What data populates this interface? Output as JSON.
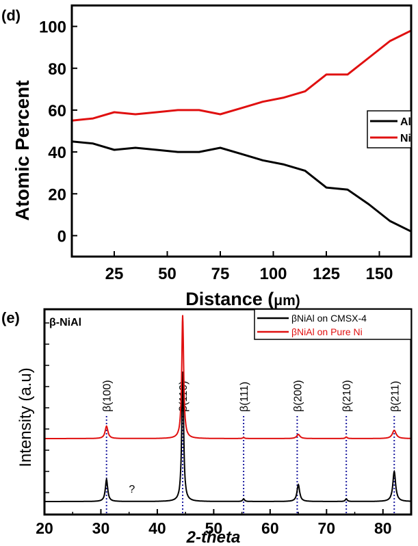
{
  "chart_data": [
    {
      "type": "line",
      "panel_label": "(d)",
      "xlabel_main": "Distance (",
      "xlabel_unit": "μm",
      "xlabel_close": ")",
      "ylabel": "Atomic Percent",
      "xlim": [
        5,
        165
      ],
      "ylim": [
        -10,
        110
      ],
      "xticks": [
        25,
        50,
        75,
        100,
        125,
        150
      ],
      "yticks": [
        0,
        20,
        40,
        60,
        80,
        100
      ],
      "legend_position": "right",
      "series": [
        {
          "name": "Al",
          "color": "#000000",
          "points": [
            [
              5,
              45
            ],
            [
              15,
              44
            ],
            [
              25,
              41
            ],
            [
              35,
              42
            ],
            [
              45,
              41
            ],
            [
              55,
              40
            ],
            [
              65,
              40
            ],
            [
              75,
              42
            ],
            [
              85,
              39
            ],
            [
              95,
              36
            ],
            [
              105,
              34
            ],
            [
              115,
              31
            ],
            [
              125,
              23
            ],
            [
              135,
              22
            ],
            [
              145,
              15
            ],
            [
              155,
              7
            ],
            [
              165,
              2
            ]
          ]
        },
        {
          "name": "Ni",
          "color": "#e01010",
          "points": [
            [
              5,
              55
            ],
            [
              15,
              56
            ],
            [
              25,
              59
            ],
            [
              35,
              58
            ],
            [
              45,
              59
            ],
            [
              55,
              60
            ],
            [
              65,
              60
            ],
            [
              75,
              58
            ],
            [
              85,
              61
            ],
            [
              95,
              64
            ],
            [
              105,
              66
            ],
            [
              115,
              69
            ],
            [
              125,
              77
            ],
            [
              135,
              77
            ],
            [
              145,
              85
            ],
            [
              155,
              93
            ],
            [
              165,
              98
            ]
          ]
        }
      ]
    },
    {
      "type": "line",
      "panel_label": "(e)",
      "phase_label": "β-NiAl",
      "xlabel": "2-theta",
      "ylabel": "Intensity (a.u)",
      "xlim": [
        20,
        85
      ],
      "xticks": [
        20,
        30,
        40,
        50,
        60,
        70,
        80
      ],
      "legend_position": "top-right",
      "series": [
        {
          "name": "βNiAl on CMSX-4",
          "color": "#000000",
          "baseline": 0,
          "peaks": [
            [
              31,
              0.17,
              0.25
            ],
            [
              44.5,
              1.0,
              0.2
            ],
            [
              55.3,
              0.02,
              0.2
            ],
            [
              65,
              0.13,
              0.28
            ],
            [
              73.5,
              0.02,
              0.2
            ],
            [
              82,
              0.23,
              0.3
            ]
          ]
        },
        {
          "name": "βNiAl on Pure Ni",
          "color": "#e01010",
          "baseline": 1,
          "peaks": [
            [
              31,
              0.24,
              0.3
            ],
            [
              44.5,
              2.4,
              0.2
            ],
            [
              55.3,
              0.02,
              0.2
            ],
            [
              65,
              0.08,
              0.35
            ],
            [
              73.5,
              0.03,
              0.2
            ],
            [
              82,
              0.16,
              0.4
            ]
          ]
        }
      ],
      "reference_lines": [
        {
          "label": "β(100)",
          "x": 31
        },
        {
          "label": "β(110)",
          "x": 44.5
        },
        {
          "label": "β(111)",
          "x": 55.3
        },
        {
          "label": "β(200)",
          "x": 64.8
        },
        {
          "label": "β(210)",
          "x": 73.5
        },
        {
          "label": "β(211)",
          "x": 82
        }
      ],
      "annotation": {
        "text": "?",
        "x": 35.5
      }
    }
  ]
}
